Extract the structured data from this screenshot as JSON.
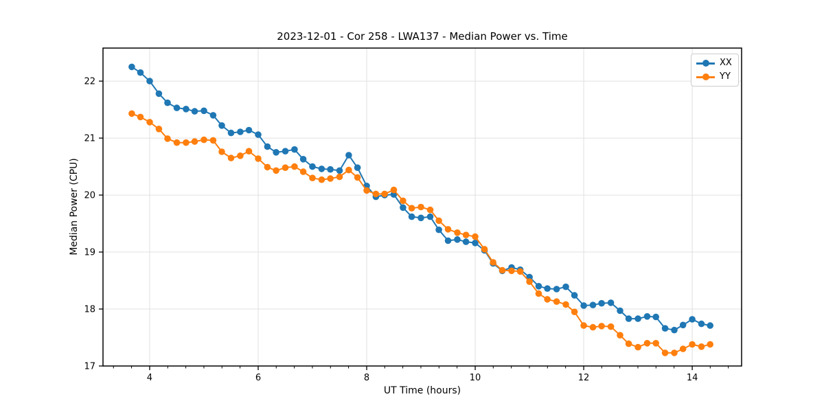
{
  "figure": {
    "background": "#ffffff"
  },
  "chart_data": {
    "type": "line",
    "title": "2023-12-01 - Cor 258 - LWA137 - Median Power vs. Time",
    "xlabel": "UT Time (hours)",
    "ylabel": "Median Power (CPU)",
    "xlim": [
      3.14,
      14.91
    ],
    "ylim": [
      17,
      22.58
    ],
    "xticks": [
      4,
      6,
      8,
      10,
      12,
      14
    ],
    "yticks": [
      17,
      18,
      19,
      20,
      21,
      22
    ],
    "x_minor_tick_step": 0.3333,
    "grid": "major",
    "grid_color": "#e0e0e0",
    "spine_color": "#000000",
    "marker": "circle",
    "marker_radius": 4.8,
    "line_width": 2,
    "legend_position": "upper right",
    "x": [
      3.67,
      3.83,
      4.0,
      4.17,
      4.33,
      4.5,
      4.67,
      4.83,
      5.0,
      5.17,
      5.33,
      5.5,
      5.67,
      5.83,
      6.0,
      6.17,
      6.33,
      6.5,
      6.67,
      6.83,
      7.0,
      7.17,
      7.33,
      7.5,
      7.67,
      7.83,
      8.0,
      8.17,
      8.33,
      8.5,
      8.67,
      8.83,
      9.0,
      9.17,
      9.33,
      9.5,
      9.67,
      9.83,
      10.0,
      10.17,
      10.33,
      10.5,
      10.67,
      10.83,
      11.0,
      11.17,
      11.33,
      11.5,
      11.67,
      11.83,
      12.0,
      12.17,
      12.33,
      12.5,
      12.67,
      12.83,
      13.0,
      13.17,
      13.33,
      13.5,
      13.67,
      13.83,
      14.0,
      14.17,
      14.33
    ],
    "series": [
      {
        "name": "XX",
        "color": "#1f77b4",
        "values": [
          22.25,
          22.15,
          22.0,
          21.78,
          21.62,
          21.53,
          21.51,
          21.47,
          21.48,
          21.4,
          21.22,
          21.09,
          21.11,
          21.14,
          21.06,
          20.85,
          20.75,
          20.77,
          20.8,
          20.63,
          20.5,
          20.46,
          20.45,
          20.43,
          20.7,
          20.48,
          20.16,
          19.97,
          20.0,
          20.01,
          19.78,
          19.62,
          19.6,
          19.62,
          19.39,
          19.2,
          19.22,
          19.18,
          19.16,
          19.03,
          18.8,
          18.67,
          18.73,
          18.69,
          18.56,
          18.4,
          18.36,
          18.35,
          18.39,
          18.24,
          18.06,
          18.07,
          18.1,
          18.11,
          17.97,
          17.83,
          17.83,
          17.87,
          17.86,
          17.66,
          17.63,
          17.72,
          17.82,
          17.74,
          17.71
        ]
      },
      {
        "name": "YY",
        "color": "#ff7f0e",
        "values": [
          21.43,
          21.37,
          21.28,
          21.16,
          20.99,
          20.92,
          20.92,
          20.94,
          20.97,
          20.96,
          20.76,
          20.65,
          20.69,
          20.77,
          20.64,
          20.49,
          20.43,
          20.48,
          20.5,
          20.41,
          20.3,
          20.27,
          20.29,
          20.32,
          20.44,
          20.31,
          20.08,
          20.02,
          20.02,
          20.09,
          19.9,
          19.77,
          19.79,
          19.74,
          19.55,
          19.4,
          19.34,
          19.3,
          19.27,
          19.05,
          18.82,
          18.68,
          18.67,
          18.66,
          18.48,
          18.27,
          18.17,
          18.13,
          18.08,
          17.95,
          17.71,
          17.68,
          17.7,
          17.69,
          17.54,
          17.39,
          17.33,
          17.4,
          17.4,
          17.23,
          17.23,
          17.3,
          17.38,
          17.34,
          17.38
        ]
      }
    ]
  }
}
